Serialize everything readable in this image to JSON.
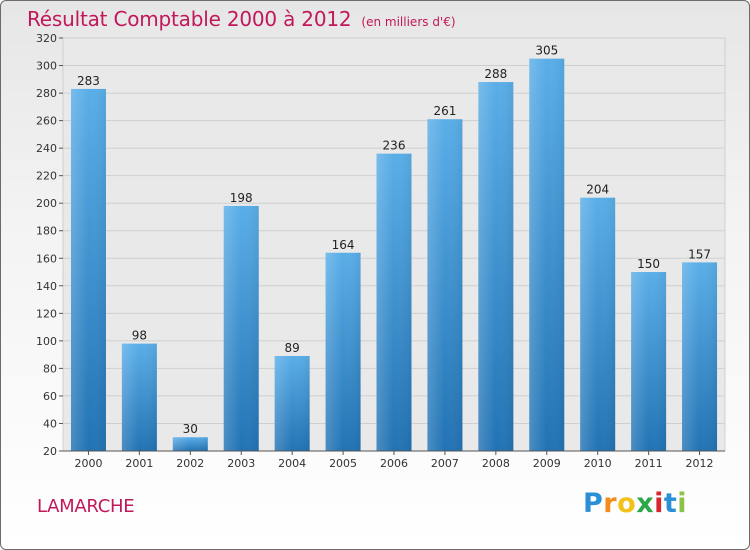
{
  "title": {
    "main": "Résultat Comptable 2000 à 2012",
    "unit": "(en milliers d'€)"
  },
  "commune": "LAMARCHE",
  "logo": {
    "letters": [
      "P",
      "r",
      "o",
      "x",
      "i",
      "t",
      "i"
    ],
    "colors": [
      "#2a8fd6",
      "#f28c1a",
      "#f2c21a",
      "#2aa84a",
      "#d9262e",
      "#2a8fd6",
      "#8bc34a"
    ]
  },
  "colors": {
    "title": "#c2185b",
    "bar_light": "#5aaee8",
    "bar_dark": "#2273b4"
  },
  "chart_data": {
    "type": "bar",
    "title": "Résultat Comptable 2000 à 2012",
    "categories": [
      "2000",
      "2001",
      "2002",
      "2003",
      "2004",
      "2005",
      "2006",
      "2007",
      "2008",
      "2009",
      "2010",
      "2011",
      "2012"
    ],
    "values": [
      283,
      98,
      30,
      198,
      89,
      164,
      236,
      261,
      288,
      305,
      204,
      150,
      157
    ],
    "ylim": [
      20,
      320
    ],
    "yticks": [
      20,
      40,
      60,
      80,
      100,
      120,
      140,
      160,
      180,
      200,
      220,
      240,
      260,
      280,
      300,
      320
    ],
    "grid": true,
    "xlabel": "",
    "ylabel": ""
  }
}
